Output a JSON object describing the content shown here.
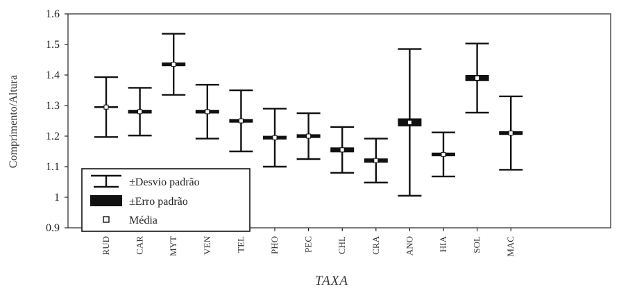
{
  "chart_data": {
    "type": "box",
    "xlabel": "TAXA",
    "ylabel": "Comprimento/Altura",
    "ylim": [
      0.9,
      1.6
    ],
    "yticks": [
      "0.9",
      "1",
      "1.1",
      "1.2",
      "1.3",
      "1.4",
      "1.5",
      "1.6"
    ],
    "categories": [
      "RUD",
      "CAR",
      "MYT",
      "VEN",
      "TEL",
      "PHO",
      "PEC",
      "CHL",
      "CRA",
      "ANO",
      "HIA",
      "SOL",
      "MAC"
    ],
    "series": [
      {
        "name": "Média",
        "values": [
          1.295,
          1.28,
          1.435,
          1.28,
          1.25,
          1.195,
          1.2,
          1.155,
          1.12,
          1.245,
          1.14,
          1.39,
          1.21
        ]
      },
      {
        "name": "±Erro padrão",
        "values": [
          0.003,
          0.006,
          0.006,
          0.006,
          0.006,
          0.006,
          0.006,
          0.008,
          0.007,
          0.013,
          0.006,
          0.01,
          0.006
        ]
      },
      {
        "name": "±Desvio padrão",
        "values": [
          0.098,
          0.078,
          0.1,
          0.088,
          0.1,
          0.095,
          0.075,
          0.075,
          0.072,
          0.24,
          0.072,
          0.113,
          0.12
        ]
      }
    ],
    "legend": {
      "position": "bottom-left",
      "entries": [
        "±Desvio padrão",
        "±Erro padrão",
        "Média"
      ]
    },
    "grid": false
  }
}
